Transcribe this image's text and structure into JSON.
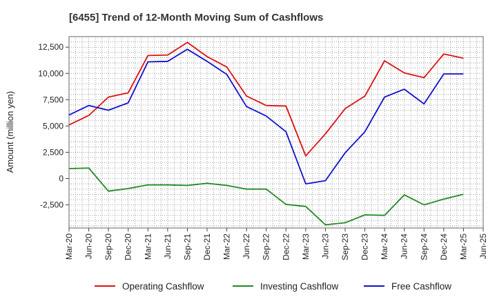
{
  "chart_data": {
    "type": "line",
    "title": "[6455]  Trend of 12-Month Moving Sum of Cashflows",
    "xlabel": "",
    "ylabel": "Amount (million yen)",
    "ylim": [
      -4700,
      13500
    ],
    "yticks": [
      12500,
      10000,
      7500,
      5000,
      2500,
      0,
      -2500
    ],
    "ytick_labels": [
      "12,500",
      "10,000",
      "7,500",
      "5,000",
      "2,500",
      "0",
      "-2,500"
    ],
    "x_ticks": [
      "Mar-20",
      "Jun-20",
      "Sep-20",
      "Dec-20",
      "Mar-21",
      "Jun-21",
      "Sep-21",
      "Dec-21",
      "Mar-22",
      "Jun-22",
      "Sep-22",
      "Dec-22",
      "Mar-23",
      "Jun-23",
      "Sep-23",
      "Dec-23",
      "Mar-24",
      "Jun-24",
      "Sep-24",
      "Dec-24",
      "Mar-25",
      "Jun-25"
    ],
    "x": [
      "Mar-20",
      "Jun-20",
      "Sep-20",
      "Dec-20",
      "Mar-21",
      "Jun-21",
      "Sep-21",
      "Dec-21",
      "Mar-22",
      "Jun-22",
      "Sep-22",
      "Dec-22",
      "Mar-23",
      "Jun-23",
      "Sep-23",
      "Dec-23",
      "Mar-24",
      "Jun-24",
      "Sep-24",
      "Dec-24",
      "Mar-25"
    ],
    "grid": true,
    "legend_position": "bottom",
    "series": [
      {
        "name": "Operating Cashflow",
        "color": "#dd1111",
        "values": [
          5100,
          6000,
          7750,
          8150,
          11700,
          11750,
          12950,
          11600,
          10600,
          7850,
          6950,
          6900,
          2150,
          4250,
          6650,
          7850,
          11200,
          10050,
          9600,
          11850,
          11450
        ]
      },
      {
        "name": "Investing Cashflow",
        "color": "#228822",
        "values": [
          950,
          1000,
          -1200,
          -950,
          -600,
          -600,
          -650,
          -450,
          -650,
          -1000,
          -1000,
          -2450,
          -2650,
          -4400,
          -4200,
          -3450,
          -3500,
          -1550,
          -2500,
          -1950,
          -1500
        ]
      },
      {
        "name": "Free Cashflow",
        "color": "#1111cc",
        "values": [
          6050,
          6950,
          6500,
          7200,
          11100,
          11150,
          12300,
          11150,
          9900,
          6850,
          5950,
          4450,
          -500,
          -200,
          2450,
          4450,
          7750,
          8500,
          7100,
          9950,
          9950
        ]
      }
    ]
  }
}
